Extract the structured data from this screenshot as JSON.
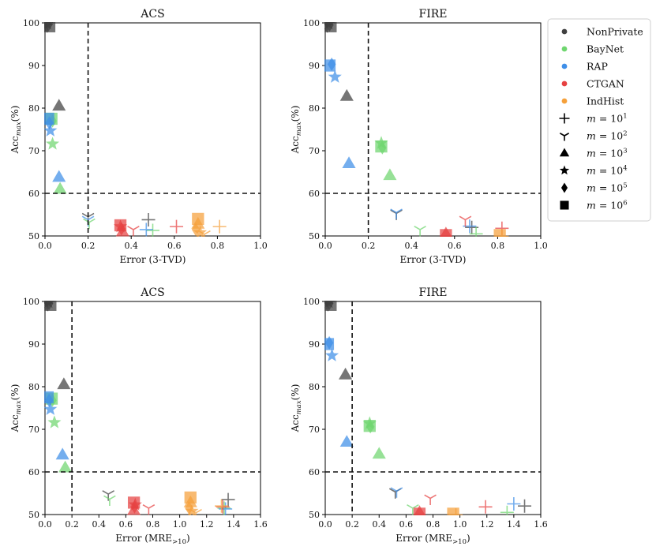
{
  "chart_data": [
    {
      "id": "acs-tvd",
      "type": "scatter",
      "title": "ACS",
      "xlabel_main": "Error (3-TVD)",
      "xlabel_sub": "",
      "ylabel_main": "Acc",
      "ylabel_sub": "max",
      "ylabel_suffix": "(%)",
      "xlim": [
        0,
        1.0
      ],
      "ylim": [
        50,
        100
      ],
      "xticks": [
        "0.0",
        "0.2",
        "0.4",
        "0.6",
        "0.8",
        "1.0"
      ],
      "xtick_values": [
        0,
        0.2,
        0.4,
        0.6,
        0.8,
        1.0
      ],
      "yticks": [
        "50",
        "60",
        "70",
        "80",
        "90",
        "100"
      ],
      "ytick_values": [
        50,
        60,
        70,
        80,
        90,
        100
      ],
      "threshold_x": 0.2,
      "threshold_y": 60,
      "points": [
        {
          "series": "NonPrivate",
          "m": "10^1",
          "x": 0.005,
          "y": 99.6
        },
        {
          "series": "NonPrivate",
          "m": "10^2",
          "x": 0.01,
          "y": 99.3
        },
        {
          "series": "NonPrivate",
          "m": "10^4",
          "x": 0.01,
          "y": 99.8
        },
        {
          "series": "NonPrivate",
          "m": "10^5",
          "x": 0.015,
          "y": 99.5
        },
        {
          "series": "NonPrivate",
          "m": "10^6",
          "x": 0.02,
          "y": 99.2
        },
        {
          "series": "NonPrivate",
          "m": "10^3",
          "x": 0.065,
          "y": 80.5
        },
        {
          "series": "NonPrivate",
          "m": "10^2",
          "x": 0.2,
          "y": 54.5
        },
        {
          "series": "NonPrivate",
          "m": "10^1",
          "x": 0.48,
          "y": 53.8
        },
        {
          "series": "BayNet",
          "m": "10^6",
          "x": 0.03,
          "y": 77.5
        },
        {
          "series": "BayNet",
          "m": "10^5",
          "x": 0.035,
          "y": 77.0
        },
        {
          "series": "BayNet",
          "m": "10^4",
          "x": 0.035,
          "y": 71.6
        },
        {
          "series": "BayNet",
          "m": "10^3",
          "x": 0.07,
          "y": 61.0
        },
        {
          "series": "BayNet",
          "m": "10^2",
          "x": 0.205,
          "y": 53.2
        },
        {
          "series": "BayNet",
          "m": "10^1",
          "x": 0.5,
          "y": 51.3
        },
        {
          "series": "RAP",
          "m": "10^6",
          "x": 0.015,
          "y": 77.5
        },
        {
          "series": "RAP",
          "m": "10^5",
          "x": 0.02,
          "y": 76.5
        },
        {
          "series": "RAP",
          "m": "10^4",
          "x": 0.025,
          "y": 74.7
        },
        {
          "series": "RAP",
          "m": "10^3",
          "x": 0.065,
          "y": 63.8
        },
        {
          "series": "RAP",
          "m": "10^2",
          "x": 0.2,
          "y": 53.8
        },
        {
          "series": "RAP",
          "m": "10^1",
          "x": 0.47,
          "y": 51.5
        },
        {
          "series": "CTGAN",
          "m": "10^6",
          "x": 0.35,
          "y": 52.5
        },
        {
          "series": "CTGAN",
          "m": "10^5",
          "x": 0.355,
          "y": 51.7
        },
        {
          "series": "CTGAN",
          "m": "10^4",
          "x": 0.35,
          "y": 52.2
        },
        {
          "series": "CTGAN",
          "m": "10^3",
          "x": 0.36,
          "y": 51.0
        },
        {
          "series": "CTGAN",
          "m": "10^2",
          "x": 0.41,
          "y": 51.5
        },
        {
          "series": "CTGAN",
          "m": "10^1",
          "x": 0.61,
          "y": 52.2
        },
        {
          "series": "IndHist",
          "m": "10^6",
          "x": 0.71,
          "y": 54.0
        },
        {
          "series": "IndHist",
          "m": "10^3",
          "x": 0.71,
          "y": 52.8
        },
        {
          "series": "IndHist",
          "m": "10^5",
          "x": 0.7,
          "y": 51.5
        },
        {
          "series": "IndHist",
          "m": "10^4",
          "x": 0.72,
          "y": 50.8
        },
        {
          "series": "IndHist",
          "m": "10^2",
          "x": 0.74,
          "y": 50.4
        },
        {
          "series": "IndHist",
          "m": "10^1",
          "x": 0.81,
          "y": 52.2
        }
      ]
    },
    {
      "id": "fire-tvd",
      "type": "scatter",
      "title": "FIRE",
      "xlabel_main": "Error (3-TVD)",
      "xlabel_sub": "",
      "ylabel_main": "Acc",
      "ylabel_sub": "max",
      "ylabel_suffix": "(%)",
      "xlim": [
        0,
        1.0
      ],
      "ylim": [
        50,
        100
      ],
      "xticks": [
        "0.0",
        "0.2",
        "0.4",
        "0.6",
        "0.8",
        "1.0"
      ],
      "xtick_values": [
        0,
        0.2,
        0.4,
        0.6,
        0.8,
        1.0
      ],
      "yticks": [
        "50",
        "60",
        "70",
        "80",
        "90",
        "100"
      ],
      "ytick_values": [
        50,
        60,
        70,
        80,
        90,
        100
      ],
      "threshold_x": 0.2,
      "threshold_y": 60,
      "points": [
        {
          "series": "NonPrivate",
          "m": "10^1",
          "x": 0.005,
          "y": 99.6
        },
        {
          "series": "NonPrivate",
          "m": "10^2",
          "x": 0.01,
          "y": 99.3
        },
        {
          "series": "NonPrivate",
          "m": "10^4",
          "x": 0.015,
          "y": 99.8
        },
        {
          "series": "NonPrivate",
          "m": "10^5",
          "x": 0.02,
          "y": 99.5
        },
        {
          "series": "NonPrivate",
          "m": "10^6",
          "x": 0.025,
          "y": 99.2
        },
        {
          "series": "NonPrivate",
          "m": "10^3",
          "x": 0.1,
          "y": 82.8
        },
        {
          "series": "NonPrivate",
          "m": "10^2",
          "x": 0.33,
          "y": 55.3
        },
        {
          "series": "NonPrivate",
          "m": "10^1",
          "x": 0.68,
          "y": 52.0
        },
        {
          "series": "BayNet",
          "m": "10^6",
          "x": 0.26,
          "y": 71.0
        },
        {
          "series": "BayNet",
          "m": "10^5",
          "x": 0.265,
          "y": 70.7
        },
        {
          "series": "BayNet",
          "m": "10^4",
          "x": 0.26,
          "y": 71.8
        },
        {
          "series": "BayNet",
          "m": "10^3",
          "x": 0.3,
          "y": 64.2
        },
        {
          "series": "BayNet",
          "m": "10^2",
          "x": 0.44,
          "y": 51.5
        },
        {
          "series": "BayNet",
          "m": "10^1",
          "x": 0.7,
          "y": 50.5
        },
        {
          "series": "RAP",
          "m": "10^6",
          "x": 0.02,
          "y": 90.0
        },
        {
          "series": "RAP",
          "m": "10^5",
          "x": 0.03,
          "y": 90.3
        },
        {
          "series": "RAP",
          "m": "10^4",
          "x": 0.045,
          "y": 87.3
        },
        {
          "series": "RAP",
          "m": "10^3",
          "x": 0.11,
          "y": 67.0
        },
        {
          "series": "RAP",
          "m": "10^2",
          "x": 0.33,
          "y": 55.5
        },
        {
          "series": "RAP",
          "m": "10^1",
          "x": 0.67,
          "y": 52.3
        },
        {
          "series": "CTGAN",
          "m": "10^3",
          "x": 0.56,
          "y": 50.5
        },
        {
          "series": "CTGAN",
          "m": "10^6",
          "x": 0.56,
          "y": 50.2
        },
        {
          "series": "CTGAN",
          "m": "10^2",
          "x": 0.65,
          "y": 53.8
        },
        {
          "series": "CTGAN",
          "m": "10^1",
          "x": 0.82,
          "y": 51.8
        },
        {
          "series": "IndHist",
          "m": "10^6",
          "x": 0.81,
          "y": 50.2
        },
        {
          "series": "IndHist",
          "m": "10^1",
          "x": 0.82,
          "y": 49.9
        }
      ]
    },
    {
      "id": "acs-mre",
      "type": "scatter",
      "title": "ACS",
      "xlabel_main": "Error (MRE",
      "xlabel_sub": ">10",
      "ylabel_main": "Acc",
      "ylabel_sub": "max",
      "ylabel_suffix": "(%)",
      "xlim": [
        0,
        1.6
      ],
      "ylim": [
        50,
        100
      ],
      "xticks": [
        "0.0",
        "0.2",
        "0.4",
        "0.6",
        "0.8",
        "1.0",
        "1.2",
        "1.4",
        "1.6"
      ],
      "xtick_values": [
        0,
        0.2,
        0.4,
        0.6,
        0.8,
        1.0,
        1.2,
        1.4,
        1.6
      ],
      "yticks": [
        "50",
        "60",
        "70",
        "80",
        "90",
        "100"
      ],
      "ytick_values": [
        50,
        60,
        70,
        80,
        90,
        100
      ],
      "threshold_x": 0.2,
      "threshold_y": 60,
      "points": [
        {
          "series": "NonPrivate",
          "m": "10^1",
          "x": 0.01,
          "y": 99.6
        },
        {
          "series": "NonPrivate",
          "m": "10^2",
          "x": 0.02,
          "y": 99.3
        },
        {
          "series": "NonPrivate",
          "m": "10^4",
          "x": 0.025,
          "y": 99.8
        },
        {
          "series": "NonPrivate",
          "m": "10^5",
          "x": 0.03,
          "y": 99.5
        },
        {
          "series": "NonPrivate",
          "m": "10^6",
          "x": 0.04,
          "y": 99.2
        },
        {
          "series": "NonPrivate",
          "m": "10^3",
          "x": 0.14,
          "y": 80.5
        },
        {
          "series": "NonPrivate",
          "m": "10^2",
          "x": 0.47,
          "y": 54.8
        },
        {
          "series": "NonPrivate",
          "m": "10^1",
          "x": 1.36,
          "y": 53.5
        },
        {
          "series": "BayNet",
          "m": "10^6",
          "x": 0.05,
          "y": 77.2
        },
        {
          "series": "BayNet",
          "m": "10^5",
          "x": 0.055,
          "y": 76.8
        },
        {
          "series": "BayNet",
          "m": "10^4",
          "x": 0.07,
          "y": 71.6
        },
        {
          "series": "BayNet",
          "m": "10^3",
          "x": 0.15,
          "y": 61.0
        },
        {
          "series": "BayNet",
          "m": "10^2",
          "x": 0.48,
          "y": 53.6
        },
        {
          "series": "BayNet",
          "m": "10^1",
          "x": 1.33,
          "y": 51.5
        },
        {
          "series": "RAP",
          "m": "10^6",
          "x": 0.02,
          "y": 77.5
        },
        {
          "series": "RAP",
          "m": "10^5",
          "x": 0.03,
          "y": 76.8
        },
        {
          "series": "RAP",
          "m": "10^4",
          "x": 0.04,
          "y": 74.7
        },
        {
          "series": "RAP",
          "m": "10^3",
          "x": 0.13,
          "y": 64.0
        },
        {
          "series": "RAP",
          "m": "10^1",
          "x": 1.34,
          "y": 51.3
        },
        {
          "series": "CTGAN",
          "m": "10^6",
          "x": 0.66,
          "y": 52.8
        },
        {
          "series": "CTGAN",
          "m": "10^5",
          "x": 0.665,
          "y": 51.8
        },
        {
          "series": "CTGAN",
          "m": "10^4",
          "x": 0.67,
          "y": 52.3
        },
        {
          "series": "CTGAN",
          "m": "10^3",
          "x": 0.66,
          "y": 51.0
        },
        {
          "series": "CTGAN",
          "m": "10^2",
          "x": 0.77,
          "y": 51.5
        },
        {
          "series": "CTGAN",
          "m": "10^1",
          "x": 1.32,
          "y": 51.8
        },
        {
          "series": "IndHist",
          "m": "10^6",
          "x": 1.08,
          "y": 54.0
        },
        {
          "series": "IndHist",
          "m": "10^3",
          "x": 1.08,
          "y": 52.8
        },
        {
          "series": "IndHist",
          "m": "10^5",
          "x": 1.07,
          "y": 51.5
        },
        {
          "series": "IndHist",
          "m": "10^4",
          "x": 1.09,
          "y": 50.8
        },
        {
          "series": "IndHist",
          "m": "10^2",
          "x": 1.12,
          "y": 50.4
        },
        {
          "series": "IndHist",
          "m": "10^1",
          "x": 1.31,
          "y": 52.0
        }
      ]
    },
    {
      "id": "fire-mre",
      "type": "scatter",
      "title": "FIRE",
      "xlabel_main": "Error (MRE",
      "xlabel_sub": ">10",
      "ylabel_main": "Acc",
      "ylabel_sub": "max",
      "ylabel_suffix": "(%)",
      "xlim": [
        0,
        1.6
      ],
      "ylim": [
        50,
        100
      ],
      "xticks": [
        "0.0",
        "0.2",
        "0.4",
        "0.6",
        "0.8",
        "1.0",
        "1.2",
        "1.4",
        "1.6"
      ],
      "xtick_values": [
        0,
        0.2,
        0.4,
        0.6,
        0.8,
        1.0,
        1.2,
        1.4,
        1.6
      ],
      "yticks": [
        "50",
        "60",
        "70",
        "80",
        "90",
        "100"
      ],
      "ytick_values": [
        50,
        60,
        70,
        80,
        90,
        100
      ],
      "threshold_x": 0.2,
      "threshold_y": 60,
      "points": [
        {
          "series": "NonPrivate",
          "m": "10^1",
          "x": 0.01,
          "y": 99.6
        },
        {
          "series": "NonPrivate",
          "m": "10^2",
          "x": 0.02,
          "y": 99.3
        },
        {
          "series": "NonPrivate",
          "m": "10^4",
          "x": 0.025,
          "y": 99.8
        },
        {
          "series": "NonPrivate",
          "m": "10^5",
          "x": 0.03,
          "y": 99.5
        },
        {
          "series": "NonPrivate",
          "m": "10^6",
          "x": 0.04,
          "y": 99.2
        },
        {
          "series": "NonPrivate",
          "m": "10^3",
          "x": 0.15,
          "y": 82.8
        },
        {
          "series": "NonPrivate",
          "m": "10^2",
          "x": 0.52,
          "y": 55.3
        },
        {
          "series": "NonPrivate",
          "m": "10^1",
          "x": 1.48,
          "y": 52.0
        },
        {
          "series": "BayNet",
          "m": "10^6",
          "x": 0.33,
          "y": 70.8
        },
        {
          "series": "BayNet",
          "m": "10^5",
          "x": 0.335,
          "y": 70.6
        },
        {
          "series": "BayNet",
          "m": "10^4",
          "x": 0.33,
          "y": 71.4
        },
        {
          "series": "BayNet",
          "m": "10^3",
          "x": 0.4,
          "y": 64.2
        },
        {
          "series": "BayNet",
          "m": "10^2",
          "x": 0.65,
          "y": 51.5
        },
        {
          "series": "BayNet",
          "m": "10^1",
          "x": 1.35,
          "y": 50.5
        },
        {
          "series": "RAP",
          "m": "10^6",
          "x": 0.02,
          "y": 90.0
        },
        {
          "series": "RAP",
          "m": "10^5",
          "x": 0.03,
          "y": 90.3
        },
        {
          "series": "RAP",
          "m": "10^4",
          "x": 0.05,
          "y": 87.3
        },
        {
          "series": "RAP",
          "m": "10^3",
          "x": 0.16,
          "y": 67.0
        },
        {
          "series": "RAP",
          "m": "10^2",
          "x": 0.53,
          "y": 55.5
        },
        {
          "series": "RAP",
          "m": "10^1",
          "x": 1.4,
          "y": 52.5
        },
        {
          "series": "CTGAN",
          "m": "10^3",
          "x": 0.7,
          "y": 50.5
        },
        {
          "series": "CTGAN",
          "m": "10^6",
          "x": 0.7,
          "y": 50.2
        },
        {
          "series": "CTGAN",
          "m": "10^2",
          "x": 0.78,
          "y": 53.8
        },
        {
          "series": "CTGAN",
          "m": "10^1",
          "x": 1.19,
          "y": 51.8
        },
        {
          "series": "IndHist",
          "m": "10^6",
          "x": 0.95,
          "y": 50.2
        },
        {
          "series": "IndHist",
          "m": "10^1",
          "x": 0.97,
          "y": 49.9
        }
      ]
    }
  ],
  "colors": {
    "NonPrivate": "#404040",
    "BayNet": "#6fd66f",
    "RAP": "#3f8fe8",
    "CTGAN": "#e64141",
    "IndHist": "#f5a03a",
    "threshold": "#111111",
    "legend_marker": "#000000"
  },
  "legend": {
    "series": [
      {
        "key": "NonPrivate",
        "label": "NonPrivate"
      },
      {
        "key": "BayNet",
        "label": "BayNet"
      },
      {
        "key": "RAP",
        "label": "RAP"
      },
      {
        "key": "CTGAN",
        "label": "CTGAN"
      },
      {
        "key": "IndHist",
        "label": "IndHist"
      }
    ],
    "markers": [
      {
        "m": "10^1",
        "marker": "plus",
        "label_main": "m = 10",
        "label_exp": "1"
      },
      {
        "m": "10^2",
        "marker": "tri_down",
        "label_main": "m = 10",
        "label_exp": "2"
      },
      {
        "m": "10^3",
        "marker": "triangle",
        "label_main": "m = 10",
        "label_exp": "3"
      },
      {
        "m": "10^4",
        "marker": "star",
        "label_main": "m = 10",
        "label_exp": "4"
      },
      {
        "m": "10^5",
        "marker": "diamond",
        "label_main": "m = 10",
        "label_exp": "5"
      },
      {
        "m": "10^6",
        "marker": "square",
        "label_main": "m = 10",
        "label_exp": "6"
      }
    ]
  }
}
